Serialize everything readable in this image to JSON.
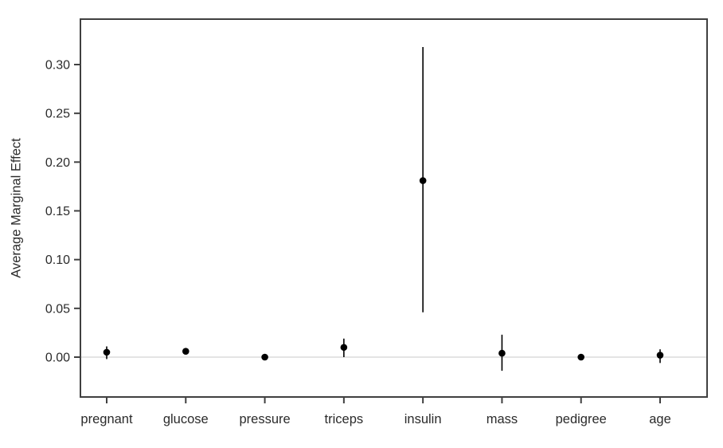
{
  "chart_data": {
    "type": "scatter",
    "subtype": "point-estimates-with-error-bars",
    "title": "",
    "xlabel": "",
    "ylabel": "Average Marginal Effect",
    "categories": [
      "pregnant",
      "glucose",
      "pressure",
      "triceps",
      "insulin",
      "mass",
      "pedigree",
      "age"
    ],
    "points": [
      {
        "category": "pregnant",
        "value": 0.005,
        "ci_low": -0.002,
        "ci_high": 0.011
      },
      {
        "category": "glucose",
        "value": 0.006,
        "ci_low": 0.003,
        "ci_high": 0.009
      },
      {
        "category": "pressure",
        "value": 0.0,
        "ci_low": -0.002,
        "ci_high": 0.002
      },
      {
        "category": "triceps",
        "value": 0.01,
        "ci_low": 0.0,
        "ci_high": 0.019
      },
      {
        "category": "insulin",
        "value": 0.181,
        "ci_low": 0.046,
        "ci_high": 0.318
      },
      {
        "category": "mass",
        "value": 0.004,
        "ci_low": -0.014,
        "ci_high": 0.023
      },
      {
        "category": "pedigree",
        "value": 0.0,
        "ci_low": -0.002,
        "ci_high": 0.002
      },
      {
        "category": "age",
        "value": 0.002,
        "ci_low": -0.006,
        "ci_high": 0.008
      }
    ],
    "yticks": [
      0.0,
      0.05,
      0.1,
      0.15,
      0.2,
      0.25,
      0.3
    ],
    "ytick_labels": [
      "0.00",
      "0.05",
      "0.10",
      "0.15",
      "0.20",
      "0.25",
      "0.30"
    ],
    "ylim": [
      -0.041,
      0.347
    ],
    "reference_line_y": 0,
    "grid": false,
    "legend": null,
    "colors": {
      "background": "#ffffff",
      "axis": "#404040",
      "text": "#2b2b2b",
      "point": "#000000",
      "error_bar": "#000000",
      "reference_line": "#dcdcdc"
    }
  }
}
